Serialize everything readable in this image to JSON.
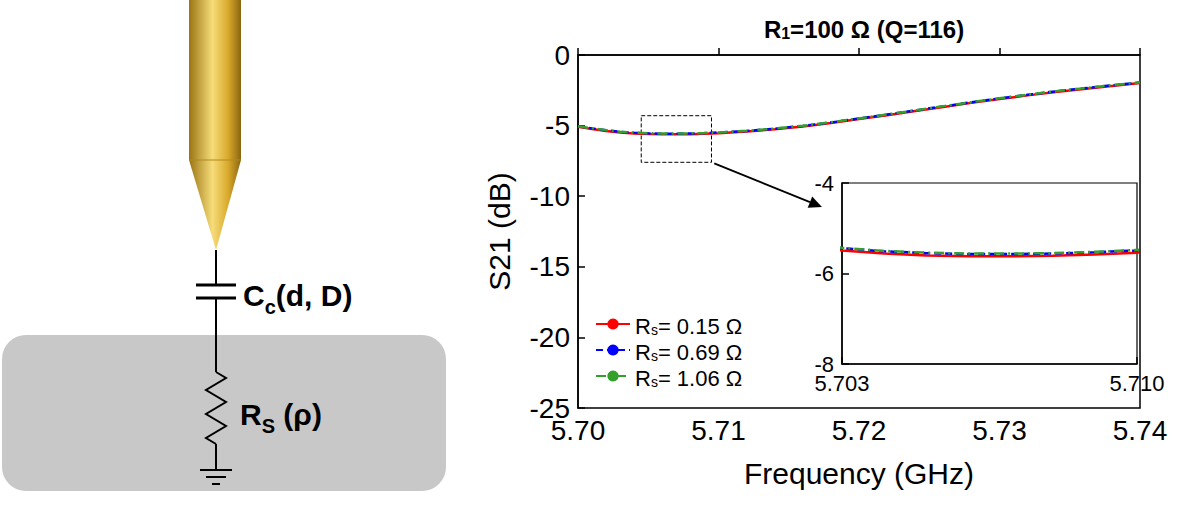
{
  "chart_data": {
    "type": "line",
    "title": {
      "text": "R1=100 Ω (Q=116)",
      "subscript": "1"
    },
    "x_label": "Frequency (GHz)",
    "y_label": "S21 (dB)",
    "x": [
      5.7,
      5.701,
      5.702,
      5.703,
      5.704,
      5.705,
      5.706,
      5.707,
      5.708,
      5.709,
      5.71,
      5.712,
      5.714,
      5.716,
      5.718,
      5.72,
      5.722,
      5.724,
      5.726,
      5.728,
      5.73,
      5.732,
      5.734,
      5.736,
      5.738,
      5.74
    ],
    "series": [
      {
        "name": "Rs= 0.15 Ω",
        "subscript": "s",
        "color": "#ff0000",
        "line_style": "solid",
        "values": [
          -5.09,
          -5.24,
          -5.38,
          -5.49,
          -5.56,
          -5.6,
          -5.62,
          -5.62,
          -5.61,
          -5.58,
          -5.54,
          -5.42,
          -5.26,
          -5.06,
          -4.82,
          -4.54,
          -4.26,
          -3.97,
          -3.68,
          -3.39,
          -3.12,
          -2.86,
          -2.62,
          -2.4,
          -2.19,
          -1.99
        ]
      },
      {
        "name": "Rs= 0.69 Ω",
        "subscript": "s",
        "color": "#0000ff",
        "line_style": "dashed",
        "values": [
          -5.05,
          -5.2,
          -5.33,
          -5.44,
          -5.51,
          -5.55,
          -5.57,
          -5.57,
          -5.56,
          -5.53,
          -5.49,
          -5.38,
          -5.22,
          -5.02,
          -4.78,
          -4.5,
          -4.22,
          -3.93,
          -3.64,
          -3.35,
          -3.08,
          -2.82,
          -2.58,
          -2.36,
          -2.15,
          -1.95
        ]
      },
      {
        "name": "Rs= 1.06 Ω",
        "subscript": "s",
        "color": "#33a02c",
        "line_style": "dashdot",
        "values": [
          -5.04,
          -5.19,
          -5.32,
          -5.43,
          -5.5,
          -5.54,
          -5.56,
          -5.56,
          -5.55,
          -5.52,
          -5.48,
          -5.37,
          -5.21,
          -5.01,
          -4.77,
          -4.49,
          -4.21,
          -3.92,
          -3.63,
          -3.34,
          -3.07,
          -2.81,
          -2.57,
          -2.35,
          -2.14,
          -1.94
        ]
      }
    ],
    "xlim": [
      5.7,
      5.74
    ],
    "xticks": [
      {
        "value": 5.7,
        "label": "5.70"
      },
      {
        "value": 5.71,
        "label": "5.71"
      },
      {
        "value": 5.72,
        "label": "5.72"
      },
      {
        "value": 5.73,
        "label": "5.73"
      },
      {
        "value": 5.74,
        "label": "5.74"
      }
    ],
    "ylim": [
      -25,
      0
    ],
    "yticks": [
      -25,
      -20,
      -15,
      -10,
      -5,
      0
    ],
    "grid": false,
    "legend": "lower left",
    "inset": {
      "zoom_box": {
        "x": [
          5.7045,
          5.7095
        ],
        "y": [
          -7.6,
          -4.3
        ]
      },
      "xlim": [
        5.703,
        5.71
      ],
      "xticks": [
        5.703,
        {
          "value": 5.71,
          "label": "5.710"
        }
      ],
      "ylim": [
        -8,
        -4
      ],
      "yticks": [
        -8,
        -6,
        -4
      ]
    }
  },
  "diagram": {
    "labels": [
      {
        "text": "Cc(d, D)",
        "subscript": "c"
      },
      {
        "text": "RS (ρ)",
        "subscript": "S"
      }
    ]
  }
}
